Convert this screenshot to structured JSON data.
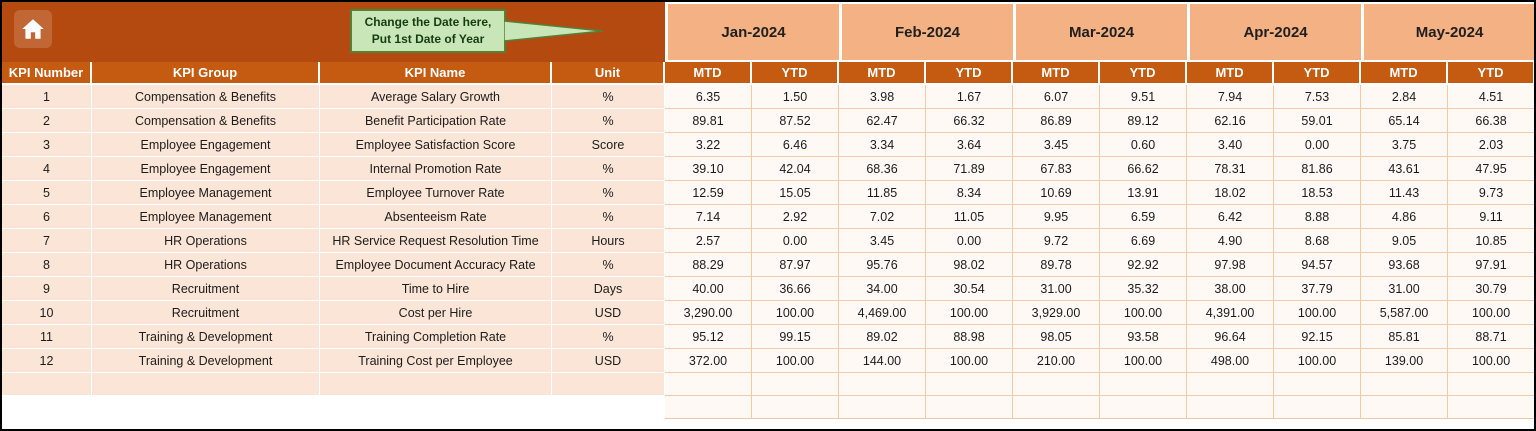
{
  "colors": {
    "header_dark": "#B54A10",
    "header_mid": "#C55A11",
    "month_band": "#F4B183",
    "row_tint": "#FBE5D6",
    "grid_line": "#F1C9A6",
    "callout_fill": "#C9E6B8",
    "callout_border": "#538135"
  },
  "callout": {
    "line1": "Change the Date here,",
    "line2": "Put 1st Date of Year"
  },
  "months": [
    "Jan-2024",
    "Feb-2024",
    "Mar-2024",
    "Apr-2024",
    "May-2024"
  ],
  "sub_headers": [
    "MTD",
    "YTD"
  ],
  "left_headers": [
    "KPI Number",
    "KPI Group",
    "KPI Name",
    "Unit"
  ],
  "rows": [
    {
      "number": "1",
      "group": "Compensation & Benefits",
      "name": "Average Salary Growth",
      "unit": "%",
      "values": [
        "6.35",
        "1.50",
        "3.98",
        "1.67",
        "6.07",
        "9.51",
        "7.94",
        "7.53",
        "2.84",
        "4.51"
      ]
    },
    {
      "number": "2",
      "group": "Compensation & Benefits",
      "name": "Benefit Participation Rate",
      "unit": "%",
      "values": [
        "89.81",
        "87.52",
        "62.47",
        "66.32",
        "86.89",
        "89.12",
        "62.16",
        "59.01",
        "65.14",
        "66.38"
      ]
    },
    {
      "number": "3",
      "group": "Employee Engagement",
      "name": "Employee Satisfaction Score",
      "unit": "Score",
      "values": [
        "3.22",
        "6.46",
        "3.34",
        "3.64",
        "3.45",
        "0.60",
        "3.40",
        "0.00",
        "3.75",
        "2.03"
      ]
    },
    {
      "number": "4",
      "group": "Employee Engagement",
      "name": "Internal Promotion Rate",
      "unit": "%",
      "values": [
        "39.10",
        "42.04",
        "68.36",
        "71.89",
        "67.83",
        "66.62",
        "78.31",
        "81.86",
        "43.61",
        "47.95"
      ]
    },
    {
      "number": "5",
      "group": "Employee Management",
      "name": "Employee Turnover Rate",
      "unit": "%",
      "values": [
        "12.59",
        "15.05",
        "11.85",
        "8.34",
        "10.69",
        "13.91",
        "18.02",
        "18.53",
        "11.43",
        "9.73"
      ]
    },
    {
      "number": "6",
      "group": "Employee Management",
      "name": "Absenteeism Rate",
      "unit": "%",
      "values": [
        "7.14",
        "2.92",
        "7.02",
        "11.05",
        "9.95",
        "6.59",
        "6.42",
        "8.88",
        "4.86",
        "9.11"
      ]
    },
    {
      "number": "7",
      "group": "HR Operations",
      "name": "HR Service Request Resolution Time",
      "unit": "Hours",
      "values": [
        "2.57",
        "0.00",
        "3.45",
        "0.00",
        "9.72",
        "6.69",
        "4.90",
        "8.68",
        "9.05",
        "10.85"
      ]
    },
    {
      "number": "8",
      "group": "HR Operations",
      "name": "Employee Document Accuracy Rate",
      "unit": "%",
      "values": [
        "88.29",
        "87.97",
        "95.76",
        "98.02",
        "89.78",
        "92.92",
        "97.98",
        "94.57",
        "93.68",
        "97.91"
      ]
    },
    {
      "number": "9",
      "group": "Recruitment",
      "name": "Time to Hire",
      "unit": "Days",
      "values": [
        "40.00",
        "36.66",
        "34.00",
        "30.54",
        "31.00",
        "35.32",
        "38.00",
        "37.79",
        "31.00",
        "30.79"
      ]
    },
    {
      "number": "10",
      "group": "Recruitment",
      "name": "Cost per Hire",
      "unit": "USD",
      "values": [
        "3,290.00",
        "100.00",
        "4,469.00",
        "100.00",
        "3,929.00",
        "100.00",
        "4,391.00",
        "100.00",
        "5,587.00",
        "100.00"
      ]
    },
    {
      "number": "11",
      "group": "Training & Development",
      "name": "Training Completion Rate",
      "unit": "%",
      "values": [
        "95.12",
        "99.15",
        "89.02",
        "88.98",
        "98.05",
        "93.58",
        "96.64",
        "92.15",
        "85.81",
        "88.71"
      ]
    },
    {
      "number": "12",
      "group": "Training & Development",
      "name": "Training Cost per Employee",
      "unit": "USD",
      "values": [
        "372.00",
        "100.00",
        "144.00",
        "100.00",
        "210.00",
        "100.00",
        "498.00",
        "100.00",
        "139.00",
        "100.00"
      ]
    }
  ]
}
